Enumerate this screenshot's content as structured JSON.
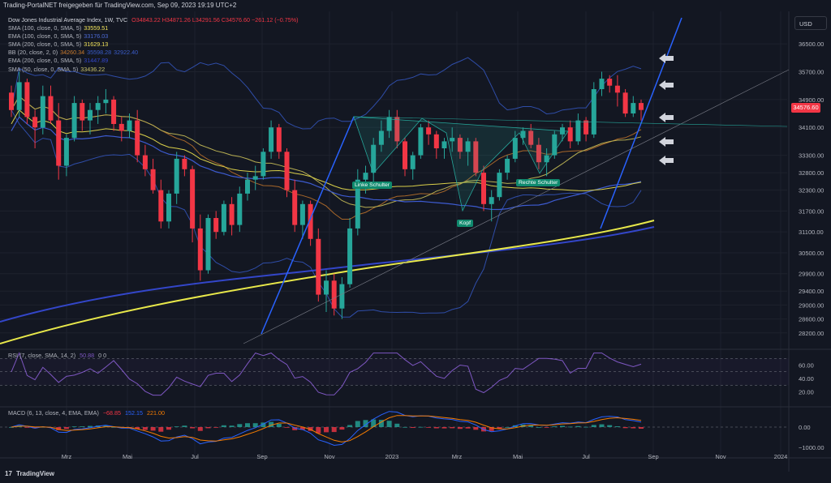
{
  "window": {
    "caption": "Trading-PortalNET freigegeben für TradingView.com, Sep 09, 2023 19:19 UTC+2"
  },
  "currency_button": "USD",
  "last_price": "34576.60",
  "branding": "TradingView",
  "legend": {
    "title": "Dow Jones Industrial Average Index, 1W, TVC",
    "ohlc": "O34843.22  H34871.26  L34291.56  C34576.60  −261.12 (−0.75%)",
    "indicators": [
      {
        "name": "SMA (100, close, 0, SMA, 5)",
        "values": [
          "33559.51"
        ],
        "colors": [
          "#f2e45b"
        ]
      },
      {
        "name": "EMA (100, close, 0, SMA, 5)",
        "values": [
          "33176.03"
        ],
        "colors": [
          "#4d6bd6"
        ]
      },
      {
        "name": "SMA (200, close, 0, SMA, 5)",
        "values": [
          "31629.13"
        ],
        "colors": [
          "#f2e45b"
        ]
      },
      {
        "name": "BB (20, close, 2, 0)",
        "values": [
          "34260.34",
          "35598.28",
          "32922.40"
        ],
        "colors": [
          "#c97b2e",
          "#3a5cc9",
          "#3a5cc9"
        ]
      },
      {
        "name": "EMA (200, close, 0, SMA, 5)",
        "values": [
          "31447.89"
        ],
        "colors": [
          "#3346c9"
        ]
      },
      {
        "name": "SMA (50, close, 0, SMA, 5)",
        "values": [
          "33436.22"
        ],
        "colors": [
          "#c8c26a"
        ]
      }
    ]
  },
  "rsi_legend": {
    "name": "RSI (7, close, SMA, 14, 2)",
    "value": "50.88",
    "extra": "0  0"
  },
  "macd_legend": {
    "name": "MACD (6, 13, close, 4, EMA, EMA)",
    "values": [
      "−68.85",
      "152.15",
      "221.00"
    ],
    "colors": [
      "#f23645",
      "#2962ff",
      "#f57c00"
    ]
  },
  "annotations": {
    "left_shoulder": "Linke Schulter",
    "head": "Kopf",
    "right_shoulder": "Rechte Schulter"
  },
  "chart_data": {
    "type": "candlestick",
    "symbol": "Dow Jones Industrial Average Index",
    "interval": "1W",
    "price_axis": [
      "36500.00",
      "35700.00",
      "34900.00",
      "34100.00",
      "33300.00",
      "32800.00",
      "32300.00",
      "31700.00",
      "31100.00",
      "30500.00",
      "29900.00",
      "29400.00",
      "29000.00",
      "28600.00",
      "28200.00"
    ],
    "rsi_axis": [
      "60.00",
      "40.00",
      "20.00"
    ],
    "macd_axis": [
      "0.00",
      "−1000.00"
    ],
    "time_axis": [
      "Mrz",
      "Mai",
      "Jul",
      "Sep",
      "Nov",
      "2023",
      "Mrz",
      "Mai",
      "Jul",
      "Sep",
      "Nov",
      "2024"
    ],
    "candles": [
      [
        35100,
        35300,
        34400,
        34600
      ],
      [
        34600,
        35700,
        34400,
        35400
      ],
      [
        35400,
        35500,
        34200,
        34400
      ],
      [
        34400,
        34600,
        33500,
        34100
      ],
      [
        34100,
        35300,
        33900,
        35000
      ],
      [
        35000,
        35300,
        34200,
        34300
      ],
      [
        34300,
        34800,
        32600,
        33000
      ],
      [
        33000,
        33900,
        32700,
        33800
      ],
      [
        33800,
        35000,
        33700,
        34800
      ],
      [
        34800,
        34900,
        34000,
        34300
      ],
      [
        34300,
        34800,
        33900,
        34600
      ],
      [
        34600,
        35000,
        34200,
        34800
      ],
      [
        34800,
        35200,
        34500,
        34900
      ],
      [
        34900,
        35000,
        34000,
        34200
      ],
      [
        34200,
        34400,
        33700,
        34000
      ],
      [
        34000,
        34500,
        33800,
        34300
      ],
      [
        34300,
        34600,
        33100,
        33300
      ],
      [
        33300,
        33600,
        32700,
        32900
      ],
      [
        32900,
        33200,
        32200,
        32300
      ],
      [
        32300,
        32600,
        31200,
        31400
      ],
      [
        31400,
        32300,
        31200,
        32200
      ],
      [
        32200,
        33400,
        31900,
        33200
      ],
      [
        33200,
        33300,
        32700,
        32900
      ],
      [
        32900,
        33000,
        30800,
        31200
      ],
      [
        31200,
        31600,
        29700,
        30000
      ],
      [
        30000,
        31600,
        29900,
        31500
      ],
      [
        31500,
        31700,
        30900,
        31100
      ],
      [
        31100,
        32000,
        31000,
        31900
      ],
      [
        31900,
        32100,
        31000,
        31300
      ],
      [
        31300,
        32400,
        31100,
        32200
      ],
      [
        32200,
        32800,
        32000,
        32600
      ],
      [
        32600,
        33000,
        32300,
        32700
      ],
      [
        32700,
        33500,
        32600,
        33400
      ],
      [
        33400,
        34300,
        33200,
        34100
      ],
      [
        34100,
        34200,
        33200,
        33400
      ],
      [
        33400,
        33500,
        32100,
        32300
      ],
      [
        32300,
        32600,
        31100,
        31300
      ],
      [
        31300,
        32000,
        30900,
        31900
      ],
      [
        31900,
        32000,
        30700,
        30900
      ],
      [
        30900,
        31200,
        29100,
        29300
      ],
      [
        29300,
        30000,
        28800,
        29700
      ],
      [
        29700,
        29900,
        28700,
        28900
      ],
      [
        28900,
        29800,
        28600,
        29600
      ],
      [
        29600,
        31500,
        29500,
        31200
      ],
      [
        31200,
        32900,
        31000,
        32600
      ],
      [
        32600,
        33000,
        32200,
        32800
      ],
      [
        32800,
        33800,
        32500,
        33600
      ],
      [
        33600,
        34300,
        33400,
        34000
      ],
      [
        34000,
        34600,
        33800,
        34400
      ],
      [
        34400,
        34600,
        33500,
        33700
      ],
      [
        33700,
        33800,
        32700,
        32900
      ],
      [
        32900,
        33400,
        32600,
        33300
      ],
      [
        33300,
        34200,
        33200,
        34100
      ],
      [
        34100,
        34300,
        33600,
        33900
      ],
      [
        33900,
        34000,
        33200,
        33500
      ],
      [
        33500,
        33800,
        33200,
        33700
      ],
      [
        33700,
        34100,
        33400,
        33800
      ],
      [
        33800,
        33900,
        33200,
        33400
      ],
      [
        33400,
        33800,
        33000,
        33700
      ],
      [
        33700,
        33800,
        32700,
        32800
      ],
      [
        32800,
        33000,
        31700,
        31900
      ],
      [
        31900,
        32300,
        31400,
        32100
      ],
      [
        32100,
        32900,
        32000,
        32800
      ],
      [
        32800,
        33300,
        32600,
        33200
      ],
      [
        33200,
        34000,
        33100,
        33800
      ],
      [
        33800,
        34100,
        33600,
        34000
      ],
      [
        34000,
        34200,
        33500,
        33600
      ],
      [
        33600,
        33800,
        32900,
        33100
      ],
      [
        33100,
        33500,
        32700,
        33300
      ],
      [
        33300,
        34000,
        33200,
        33900
      ],
      [
        33900,
        34200,
        33700,
        34100
      ],
      [
        34100,
        34300,
        33500,
        33700
      ],
      [
        33700,
        34500,
        33600,
        34300
      ],
      [
        34300,
        34400,
        33700,
        33900
      ],
      [
        33900,
        35400,
        33800,
        35200
      ],
      [
        35200,
        35700,
        35000,
        35500
      ],
      [
        35500,
        35600,
        35100,
        35300
      ],
      [
        35300,
        35600,
        34700,
        35100
      ],
      [
        35100,
        35200,
        34400,
        34500
      ],
      [
        34500,
        35000,
        34400,
        34800
      ],
      [
        34800,
        34900,
        34300,
        34600
      ]
    ]
  }
}
